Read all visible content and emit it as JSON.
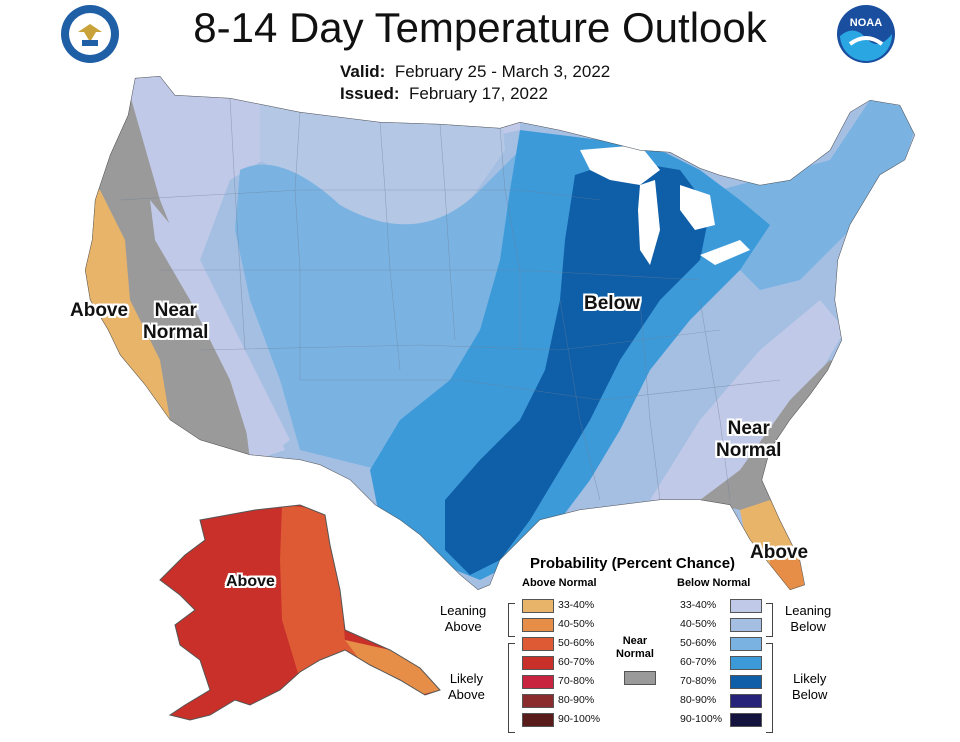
{
  "header": {
    "title": "8-14 Day Temperature Outlook",
    "valid_label": "Valid:",
    "valid_value": "February 25 - March 3, 2022",
    "issued_label": "Issued:",
    "issued_value": "February 17, 2022"
  },
  "logos": {
    "left": "commerce-seal-icon",
    "right": "noaa-logo-icon"
  },
  "map_labels": {
    "west_above": "Above",
    "west_near_1": "Near",
    "west_near_2": "Normal",
    "central_below": "Below",
    "se_near_1": "Near",
    "se_near_2": "Normal",
    "florida_above": "Above",
    "alaska_above": "Above"
  },
  "legend": {
    "title": "Probability (Percent Chance)",
    "above_header": "Above Normal",
    "below_header": "Below Normal",
    "near_1": "Near",
    "near_2": "Normal",
    "leaning_above_1": "Leaning",
    "leaning_above_2": "Above",
    "likely_above_1": "Likely",
    "likely_above_2": "Above",
    "leaning_below_1": "Leaning",
    "leaning_below_2": "Below",
    "likely_below_1": "Likely",
    "likely_below_2": "Below",
    "above_rows": [
      "33-40%",
      "40-50%",
      "50-60%",
      "60-70%",
      "70-80%",
      "80-90%",
      "90-100%"
    ],
    "below_rows": [
      "33-40%",
      "40-50%",
      "50-60%",
      "60-70%",
      "70-80%",
      "80-90%",
      "90-100%"
    ],
    "above_colors": [
      "#e8b46a",
      "#e68e47",
      "#dd5a35",
      "#c83029",
      "#c8233f",
      "#8a2b2e",
      "#5a1b1b"
    ],
    "below_colors": [
      "#c0c9e8",
      "#a5bfe3",
      "#7ab3e2",
      "#3d9ad9",
      "#0e5ea8",
      "#27227a",
      "#14133f"
    ],
    "near_color": "#9a9a9a"
  }
}
